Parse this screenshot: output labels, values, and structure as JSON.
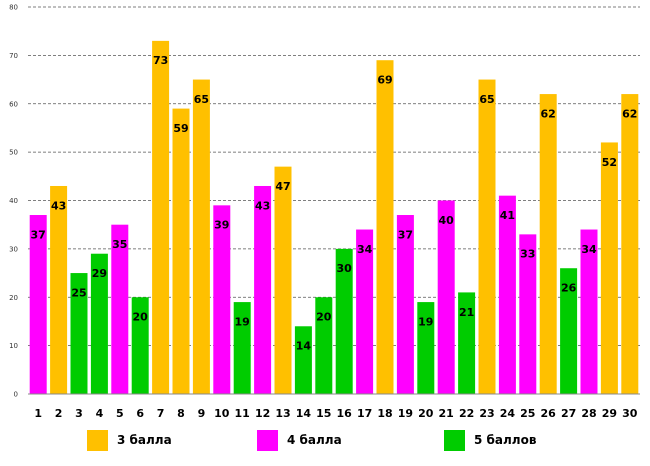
{
  "chart_data": {
    "type": "bar",
    "title": "",
    "xlabel": "",
    "ylabel": "",
    "ylim": [
      0,
      80
    ],
    "yticks": [
      0,
      10,
      20,
      30,
      40,
      50,
      60,
      70,
      80
    ],
    "grid": true,
    "categories": [
      "1",
      "2",
      "3",
      "4",
      "5",
      "6",
      "7",
      "8",
      "9",
      "10",
      "11",
      "12",
      "13",
      "14",
      "15",
      "16",
      "17",
      "18",
      "19",
      "20",
      "21",
      "22",
      "23",
      "24",
      "25",
      "26",
      "27",
      "28",
      "29",
      "30"
    ],
    "values": [
      37,
      43,
      25,
      29,
      35,
      20,
      73,
      59,
      65,
      39,
      19,
      43,
      47,
      14,
      20,
      30,
      34,
      69,
      37,
      19,
      40,
      21,
      65,
      41,
      33,
      62,
      26,
      34,
      52,
      62
    ],
    "groups": [
      "4",
      "3",
      "5",
      "5",
      "4",
      "5",
      "3",
      "3",
      "3",
      "4",
      "5",
      "4",
      "3",
      "5",
      "5",
      "5",
      "4",
      "3",
      "4",
      "5",
      "4",
      "5",
      "3",
      "4",
      "4",
      "3",
      "5",
      "4",
      "3",
      "3"
    ],
    "legend": [
      {
        "key": "3",
        "label": "3 балла",
        "color": "#FFC000"
      },
      {
        "key": "4",
        "label": "4 балла",
        "color": "#FF00FF"
      },
      {
        "key": "5",
        "label": "5 баллов",
        "color": "#00CC00"
      }
    ]
  }
}
